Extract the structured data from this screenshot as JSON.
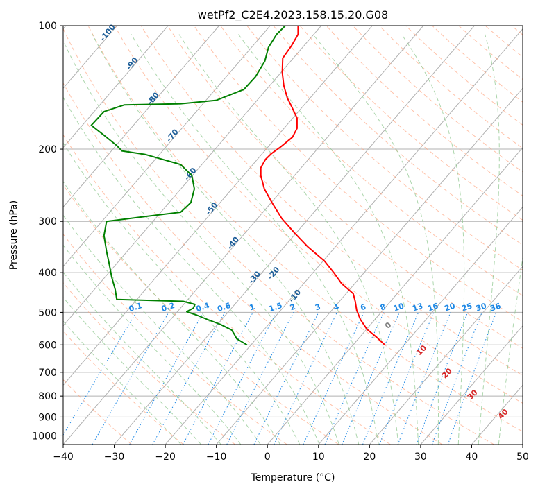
{
  "chart_data": {
    "type": "line",
    "title": "wetPf2_C2E4.2023.158.15.20.G08",
    "xlabel": "Temperature (°C)",
    "ylabel": "Pressure (hPa)",
    "xlim": [
      -40,
      50
    ],
    "ylim": [
      1050,
      100
    ],
    "x_ticks": [
      "−40",
      "−30",
      "−20",
      "−10",
      "0",
      "10",
      "20",
      "30",
      "40",
      "50"
    ],
    "y_ticks": [
      "100",
      "200",
      "300",
      "400",
      "500",
      "600",
      "700",
      "800",
      "900",
      "1000"
    ],
    "y_tick_values": [
      100,
      200,
      300,
      400,
      500,
      600,
      700,
      800,
      900,
      1000
    ],
    "series": [
      {
        "name": "temperature",
        "color": "#ff0000",
        "points": [
          [
            23.0,
            600
          ],
          [
            21.4,
            575
          ],
          [
            19.5,
            550
          ],
          [
            18.2,
            520
          ],
          [
            17.5,
            495
          ],
          [
            17.2,
            470
          ],
          [
            16.8,
            450
          ],
          [
            14.5,
            425
          ],
          [
            13.0,
            400
          ],
          [
            11.2,
            375
          ],
          [
            7.8,
            345
          ],
          [
            5.3,
            320
          ],
          [
            2.8,
            295
          ],
          [
            0.9,
            270
          ],
          [
            -0.6,
            250
          ],
          [
            -1.3,
            232
          ],
          [
            -1.3,
            222
          ],
          [
            -0.4,
            212
          ],
          [
            0.8,
            205
          ],
          [
            2.7,
            197
          ],
          [
            4.9,
            187
          ],
          [
            5.8,
            178
          ],
          [
            5.8,
            168
          ],
          [
            4.8,
            158
          ],
          [
            3.9,
            150
          ],
          [
            3.2,
            140
          ],
          [
            2.9,
            130
          ],
          [
            3.0,
            120
          ],
          [
            4.7,
            112
          ],
          [
            6.0,
            105
          ],
          [
            6.0,
            100
          ]
        ]
      },
      {
        "name": "dewpoint",
        "color": "#008000",
        "points": [
          [
            -4.0,
            600
          ],
          [
            -6.0,
            580
          ],
          [
            -6.5,
            565
          ],
          [
            -7.0,
            552
          ],
          [
            -9.2,
            535
          ],
          [
            -11.8,
            520
          ],
          [
            -13.8,
            508
          ],
          [
            -15.8,
            498
          ],
          [
            -14.5,
            488
          ],
          [
            -14.2,
            478
          ],
          [
            -16.5,
            470
          ],
          [
            -29.5,
            465
          ],
          [
            -29.8,
            440
          ],
          [
            -30.5,
            410
          ],
          [
            -31.0,
            380
          ],
          [
            -31.5,
            355
          ],
          [
            -32.0,
            325
          ],
          [
            -31.5,
            300
          ],
          [
            -24.0,
            292
          ],
          [
            -17.0,
            285
          ],
          [
            -15.0,
            270
          ],
          [
            -14.3,
            250
          ],
          [
            -14.8,
            232
          ],
          [
            -17.0,
            218
          ],
          [
            -24.0,
            206
          ],
          [
            -28.5,
            202
          ],
          [
            -29.5,
            196
          ],
          [
            -32.0,
            185
          ],
          [
            -34.5,
            175
          ],
          [
            -32.0,
            162
          ],
          [
            -28.0,
            156
          ],
          [
            -17.0,
            155
          ],
          [
            -10.0,
            152
          ],
          [
            -4.6,
            143
          ],
          [
            -2.3,
            133
          ],
          [
            -0.5,
            122
          ],
          [
            0.2,
            113
          ],
          [
            1.8,
            105
          ],
          [
            3.5,
            100
          ]
        ]
      }
    ],
    "mixing_ratio_labels": [
      "0.1",
      "0.2",
      "0.4",
      "0.6",
      "1",
      "1.5",
      "2",
      "3",
      "4",
      "6",
      "8",
      "10",
      "13",
      "16",
      "20",
      "25",
      "30",
      "36"
    ],
    "mixing_ratio_values": [
      0.1,
      0.2,
      0.4,
      0.6,
      1,
      1.5,
      2,
      3,
      4,
      6,
      8,
      10,
      13,
      16,
      20,
      25,
      30,
      36
    ],
    "dry_adiabat_labels": [
      "-100",
      "-90",
      "-80",
      "-70",
      "-60",
      "-50",
      "-40",
      "-30",
      "-20",
      "-10"
    ],
    "dry_adiabat_values": [
      -100,
      -90,
      -80,
      -70,
      -60,
      -50,
      -40,
      -30,
      -20,
      -10
    ],
    "moist_adiabat_labels": [
      "0",
      "10",
      "20",
      "30",
      "40"
    ],
    "moist_adiabat_values": [
      0,
      10,
      20,
      30,
      40
    ],
    "grid": true,
    "colors": {
      "isotherm": "#b0b0b0",
      "isobar": "#b0b0b0",
      "dry_adiabat": "#ffa07a",
      "moist_adiabat": "#90c890",
      "mixing_ratio": "#1e88e5",
      "zero_label": "#808080",
      "warm_label": "#d62728",
      "dry_label": "#1f5f99"
    }
  }
}
